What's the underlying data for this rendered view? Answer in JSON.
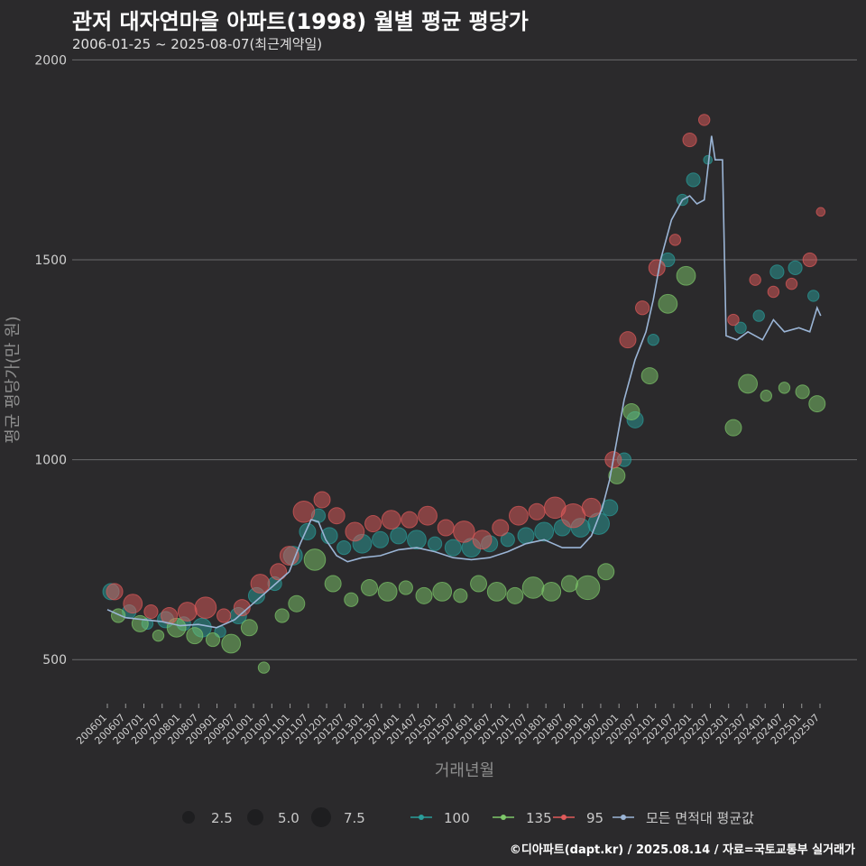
{
  "title": "관저 대자연마을 아파트(1998) 월별 평균 평당가",
  "subtitle": "2006-01-25 ~ 2025-08-07(최근계약일)",
  "caption": "©디아파트(dapt.kr) / 2025.08.14 / 자료=국토교통부 실거래가",
  "colors": {
    "background": "#2b2a2c",
    "grid": "#6a6a6c",
    "s100": "#2a9d9a",
    "s135": "#7ec86a",
    "s95": "#e05a5a",
    "avg": "#9bb5d6"
  },
  "chart_data": {
    "type": "scatter",
    "xlabel": "거래년월",
    "ylabel": "평균 평당가(만 원)",
    "ylim": [
      390,
      2010
    ],
    "yticks": [
      500,
      1000,
      1500,
      2000
    ],
    "xticks": [
      "200601",
      "200607",
      "200701",
      "200707",
      "200801",
      "200807",
      "200901",
      "200907",
      "201001",
      "201007",
      "201101",
      "201107",
      "201201",
      "201207",
      "201301",
      "201307",
      "201401",
      "201407",
      "201501",
      "201507",
      "201601",
      "201607",
      "201701",
      "201707",
      "201801",
      "201807",
      "201901",
      "201907",
      "202001",
      "202007",
      "202101",
      "202107",
      "202201",
      "202207",
      "202301",
      "202307",
      "202401",
      "202407",
      "202501",
      "202507"
    ],
    "size_legend": {
      "values": [
        2.5,
        5.0,
        7.5
      ],
      "labels": [
        "2.5",
        "5.0",
        "7.5"
      ]
    },
    "color_legend": [
      {
        "label": "100",
        "key": "s100"
      },
      {
        "label": "135",
        "key": "s135"
      },
      {
        "label": "95",
        "key": "s95"
      },
      {
        "label": "모든 면적대 평균값",
        "key": "avg"
      }
    ],
    "avg_series": {
      "name": "모든 면적대 평균값",
      "t": [
        2006.0,
        2006.5,
        2007.0,
        2007.5,
        2008.0,
        2008.5,
        2009.0,
        2009.5,
        2010.0,
        2010.5,
        2011.0,
        2011.3,
        2011.6,
        2011.8,
        2012.0,
        2012.3,
        2012.6,
        2013.0,
        2013.5,
        2014.0,
        2014.5,
        2015.0,
        2015.5,
        2016.0,
        2016.5,
        2017.0,
        2017.5,
        2018.0,
        2018.5,
        2019.0,
        2019.3,
        2019.6,
        2019.8,
        2020.0,
        2020.2,
        2020.5,
        2020.8,
        2021.0,
        2021.2,
        2021.5,
        2021.8,
        2022.0,
        2022.2,
        2022.4,
        2022.6,
        2022.7,
        2022.9,
        2023.0,
        2023.3,
        2023.6,
        2024.0,
        2024.3,
        2024.6,
        2025.0,
        2025.3,
        2025.5,
        2025.6
      ],
      "values": [
        625,
        605,
        600,
        595,
        585,
        588,
        580,
        600,
        640,
        680,
        720,
        790,
        850,
        845,
        800,
        760,
        745,
        755,
        760,
        775,
        780,
        770,
        755,
        750,
        755,
        770,
        790,
        800,
        780,
        780,
        810,
        880,
        950,
        1050,
        1150,
        1250,
        1320,
        1400,
        1500,
        1600,
        1650,
        1660,
        1640,
        1650,
        1810,
        1750,
        1750,
        1310,
        1300,
        1320,
        1300,
        1350,
        1320,
        1330,
        1320,
        1380,
        1360
      ]
    },
    "series": [
      {
        "name": "100",
        "key": "s100",
        "t": [
          2006.1,
          2006.6,
          2007.1,
          2007.6,
          2008.1,
          2008.6,
          2009.1,
          2009.6,
          2010.1,
          2010.6,
          2011.1,
          2011.5,
          2011.8,
          2012.1,
          2012.5,
          2013.0,
          2013.5,
          2014.0,
          2014.5,
          2015.0,
          2015.5,
          2016.0,
          2016.5,
          2017.0,
          2017.5,
          2018.0,
          2018.5,
          2019.0,
          2019.5,
          2019.8,
          2020.2,
          2020.5,
          2021.0,
          2021.4,
          2021.8,
          2022.1,
          2022.5,
          2023.4,
          2023.9,
          2024.4,
          2024.9,
          2025.4
        ],
        "values": [
          670,
          620,
          590,
          600,
          590,
          580,
          570,
          610,
          660,
          690,
          760,
          820,
          860,
          810,
          780,
          790,
          800,
          810,
          800,
          790,
          780,
          780,
          790,
          800,
          810,
          820,
          830,
          830,
          840,
          880,
          1000,
          1100,
          1300,
          1500,
          1650,
          1700,
          1750,
          1330,
          1360,
          1470,
          1480,
          1410
        ],
        "sizes": [
          5,
          4,
          3,
          5,
          4,
          6,
          3,
          5,
          5,
          4,
          6,
          5,
          4,
          5,
          4,
          6,
          5,
          5,
          6,
          4,
          5,
          6,
          5,
          4,
          5,
          6,
          5,
          6,
          7,
          5,
          4,
          5,
          3,
          4,
          3,
          4,
          2,
          3,
          3,
          4,
          4,
          3
        ]
      },
      {
        "name": "135",
        "key": "s135",
        "t": [
          2006.3,
          2006.9,
          2007.4,
          2007.9,
          2008.4,
          2008.9,
          2009.4,
          2009.9,
          2010.3,
          2010.8,
          2011.2,
          2011.7,
          2012.2,
          2012.7,
          2013.2,
          2013.7,
          2014.2,
          2014.7,
          2015.2,
          2015.7,
          2016.2,
          2016.7,
          2017.2,
          2017.7,
          2018.2,
          2018.7,
          2019.2,
          2019.7,
          2020.0,
          2020.4,
          2020.9,
          2021.4,
          2021.9,
          2023.2,
          2023.6,
          2024.1,
          2024.6,
          2025.1,
          2025.5
        ],
        "values": [
          610,
          590,
          560,
          580,
          560,
          550,
          540,
          580,
          480,
          610,
          640,
          750,
          690,
          650,
          680,
          670,
          680,
          660,
          670,
          660,
          690,
          670,
          660,
          680,
          670,
          690,
          680,
          720,
          960,
          1120,
          1210,
          1390,
          1460,
          1080,
          1190,
          1160,
          1180,
          1170,
          1140
        ],
        "sizes": [
          4,
          5,
          3,
          6,
          5,
          4,
          6,
          5,
          3,
          4,
          5,
          7,
          5,
          4,
          5,
          6,
          4,
          5,
          6,
          4,
          5,
          6,
          5,
          7,
          6,
          5,
          8,
          5,
          5,
          5,
          5,
          6,
          6,
          5,
          6,
          3,
          3,
          4,
          5
        ]
      },
      {
        "name": "95",
        "key": "s95",
        "t": [
          2006.2,
          2006.7,
          2007.2,
          2007.7,
          2008.2,
          2008.7,
          2009.2,
          2009.7,
          2010.2,
          2010.7,
          2011.0,
          2011.4,
          2011.9,
          2012.3,
          2012.8,
          2013.3,
          2013.8,
          2014.3,
          2014.8,
          2015.3,
          2015.8,
          2016.3,
          2016.8,
          2017.3,
          2017.8,
          2018.3,
          2018.8,
          2019.3,
          2019.9,
          2020.3,
          2020.7,
          2021.1,
          2021.6,
          2022.0,
          2022.4,
          2023.2,
          2023.8,
          2024.3,
          2024.8,
          2025.3,
          2025.6
        ],
        "values": [
          670,
          640,
          620,
          610,
          620,
          630,
          610,
          630,
          690,
          720,
          760,
          870,
          900,
          860,
          820,
          840,
          850,
          850,
          860,
          830,
          820,
          800,
          830,
          860,
          870,
          880,
          860,
          880,
          1000,
          1300,
          1380,
          1480,
          1550,
          1800,
          1850,
          1350,
          1450,
          1420,
          1440,
          1500,
          1620
        ],
        "sizes": [
          5,
          6,
          4,
          5,
          6,
          7,
          4,
          5,
          6,
          5,
          6,
          7,
          5,
          5,
          6,
          5,
          6,
          5,
          6,
          5,
          7,
          6,
          5,
          6,
          5,
          7,
          8,
          6,
          5,
          5,
          4,
          5,
          3,
          4,
          3,
          3,
          3,
          3,
          3,
          4,
          2
        ]
      }
    ]
  }
}
